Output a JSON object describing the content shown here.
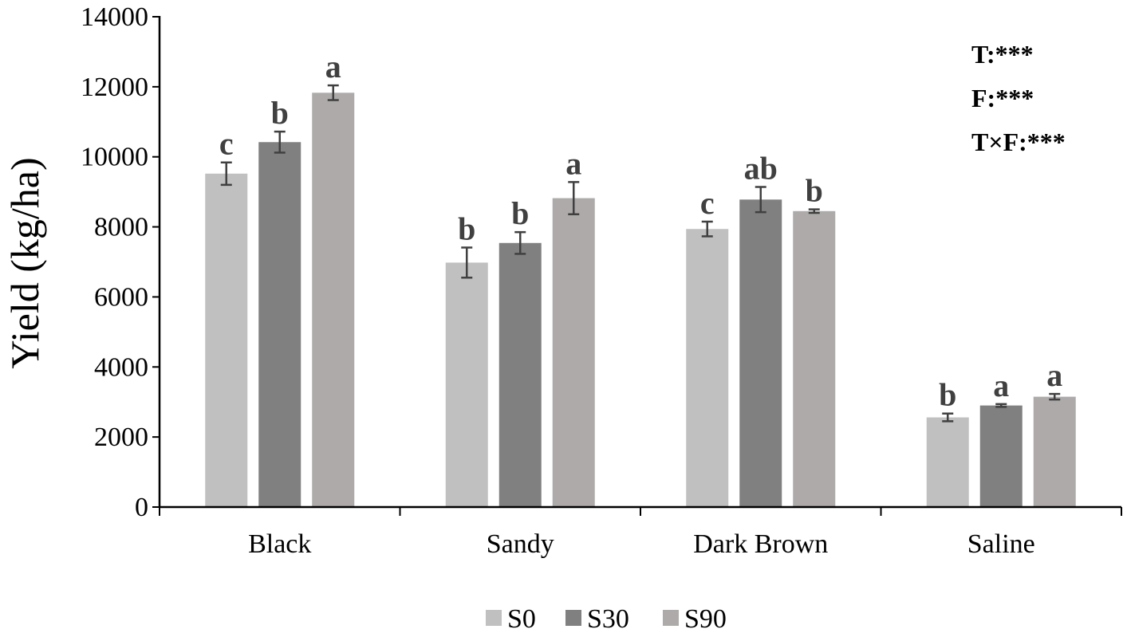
{
  "chart_data": {
    "type": "bar",
    "title": "",
    "xlabel": "",
    "ylabel": "Yield (kg/ha)",
    "ylim": [
      0,
      14000
    ],
    "yticks": [
      "0",
      "2000",
      "4000",
      "6000",
      "8000",
      "10000",
      "12000",
      "14000"
    ],
    "categories": [
      "Black",
      "Sandy",
      "Dark Brown",
      "Saline"
    ],
    "grid": false,
    "legend_position": "bottom",
    "series": [
      {
        "name": "S0",
        "color": "#c0c0c0",
        "values": [
          9520,
          6980,
          7940,
          2560
        ],
        "errors": [
          320,
          430,
          210,
          110
        ],
        "letters": [
          "c",
          "b",
          "c",
          "b"
        ]
      },
      {
        "name": "S30",
        "color": "#808080",
        "values": [
          10420,
          7540,
          8780,
          2900
        ],
        "errors": [
          300,
          310,
          360,
          40
        ],
        "letters": [
          "b",
          "b",
          "ab",
          "a"
        ]
      },
      {
        "name": "S90",
        "color": "#aeaaaa",
        "values": [
          11830,
          8820,
          8450,
          3150
        ],
        "errors": [
          210,
          460,
          50,
          80
        ],
        "letters": [
          "a",
          "a",
          "b",
          "a"
        ]
      }
    ],
    "annotations": [
      "T:***",
      "F:***",
      "T×F:***"
    ]
  }
}
